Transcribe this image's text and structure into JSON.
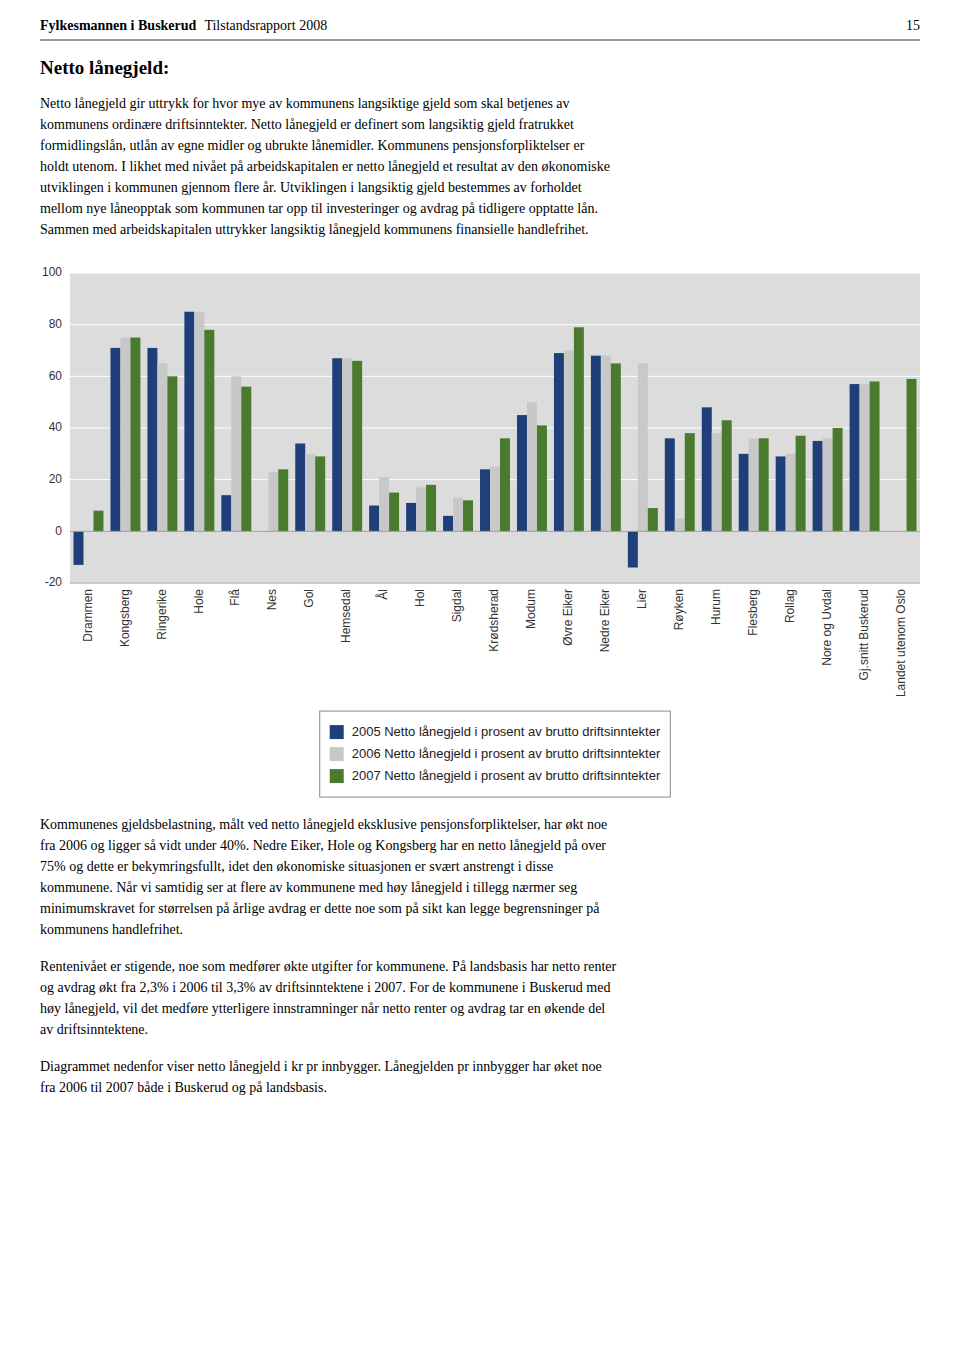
{
  "page": {
    "header_bold": "Fylkesmannen i Buskerud",
    "header_rest": "Tilstandsrapport 2008",
    "page_number": "15",
    "section_title": "Netto lånegjeld:",
    "paragraphs_above": [
      "Netto lånegjeld gir uttrykk for hvor mye av kommunens langsiktige gjeld som skal betjenes av\nkommunens ordinære driftsinntekter.  Netto lånegjeld er definert som langsiktig gjeld fratrukket\nformidlingslån, utlån av egne midler og ubrukte lånemidler.  Kommunens pensjonsforpliktelser er\nholdt utenom.  I likhet med nivået på arbeidskapitalen er netto lånegjeld et resultat av den økonomiske\nutviklingen i kommunen gjennom flere år.  Utviklingen i langsiktig gjeld bestemmes av forholdet\nmellom nye låneopptak som kommunen tar opp til investeringer og avdrag på tidligere opptatte lån.\nSammen med arbeidskapitalen uttrykker langsiktig lånegjeld kommunens finansielle handlefrihet."
    ],
    "paragraphs_below": [
      "Kommunenes gjeldsbelastning, målt ved netto lånegjeld eksklusive pensjonsforpliktelser, har økt noe\nfra 2006 og ligger så vidt under 40%. Nedre Eiker, Hole og Kongsberg har en netto lånegjeld på over\n75% og dette er bekymringsfullt, idet den økonomiske situasjonen er svært anstrengt i disse\nkommunene.  Når vi samtidig ser at flere av kommunene med høy lånegjeld i tillegg nærmer seg\nminimumskravet for størrelsen på årlige avdrag er dette noe som på sikt kan legge begrensninger på\nkommunens handlefrihet.",
      "Rentenivået er stigende, noe som medfører økte utgifter for kommunene. På landsbasis har netto renter\nog avdrag økt fra 2,3% i 2006 til 3,3% av driftsinntektene i 2007. For de kommunene i Buskerud med\nhøy lånegjeld, vil det medføre ytterligere innstramninger når netto renter og avdrag tar en økende del\nav driftsinntektene.",
      "Diagrammet nedenfor viser netto lånegjeld i kr pr innbygger.  Lånegjelden pr innbygger har øket noe\nfra 2006 til 2007 både i Buskerud og på landsbasis."
    ]
  },
  "chart_data": {
    "type": "bar",
    "categories": [
      "Drammen",
      "Kongsberg",
      "Ringerike",
      "Hole",
      "Flå",
      "Nes",
      "Gol",
      "Hemsedal",
      "Ål",
      "Hol",
      "Sigdal",
      "Krødsherad",
      "Modum",
      "Øvre Eiker",
      "Nedre Eiker",
      "Lier",
      "Røyken",
      "Hurum",
      "Flesberg",
      "Rollag",
      "Nore og Uvdal",
      "Gj.snitt Buskerud",
      "Landet utenom Oslo"
    ],
    "series": [
      {
        "name": "2005 Netto lånegjeld i prosent av brutto driftsinntekter",
        "color": "#1F3F7A",
        "values": [
          -13,
          71,
          71,
          85,
          14,
          0,
          34,
          67,
          10,
          11,
          6,
          24,
          45,
          69,
          68,
          -14,
          36,
          48,
          30,
          29,
          35,
          57,
          0
        ]
      },
      {
        "name": "2006 Netto lånegjeld i prosent av brutto driftsinntekter",
        "color": "#C8C8C8",
        "values": [
          0,
          75,
          65,
          85,
          60,
          23,
          30,
          67,
          21,
          17,
          13,
          25,
          50,
          70,
          68,
          65,
          5,
          38,
          36,
          30,
          36,
          57,
          0
        ]
      },
      {
        "name": "2007 Netto lånegjeld i prosent av brutto driftsinntekter",
        "color": "#4A7A2E",
        "values": [
          8,
          75,
          60,
          78,
          56,
          24,
          29,
          66,
          15,
          18,
          12,
          36,
          41,
          79,
          65,
          9,
          38,
          43,
          36,
          37,
          40,
          58,
          59
        ]
      }
    ],
    "ylim": [
      -20,
      100
    ],
    "yticks": [
      -20,
      0,
      20,
      40,
      60,
      80,
      100
    ],
    "grid": true,
    "legend": "bottom"
  }
}
